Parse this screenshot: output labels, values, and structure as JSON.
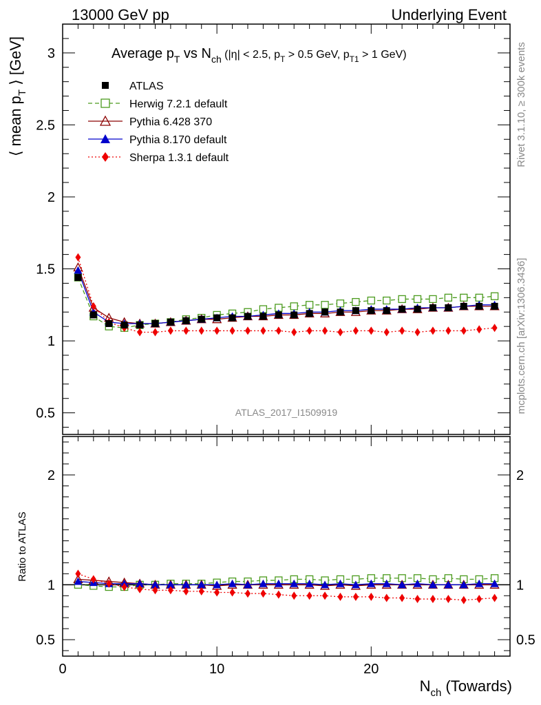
{
  "header": {
    "left": "13000 GeV pp",
    "right": "Underlying Event"
  },
  "side": {
    "rivet": "Rivet 3.1.10, ≥ 300k events",
    "mcplots": "mcplots.cern.ch [arXiv:1306.3436]"
  },
  "watermark": "ATLAS_2017_I1509919",
  "chart_data": {
    "type": "line",
    "title": "Average p_T vs N_ch (|η| < 2.5, p_T > 0.5 GeV, p_T1 > 1 GeV)",
    "title_parts": {
      "a": "Average p",
      "a_sub": "T",
      "b": " vs N",
      "b_sub": "ch",
      "c": " (|η| < 2.5, p",
      "c_sub": "T",
      "d": " > 0.5 GeV, p",
      "d_sub": "T1",
      "e": " > 1 GeV)"
    },
    "ylabel_parts": {
      "a": "⟨ mean p",
      "sub": "T",
      "b": " ⟩ [GeV]"
    },
    "xlabel_parts": {
      "a": "N",
      "sub": "ch",
      "b": " (Towards)"
    },
    "ratio_ylabel": "Ratio to ATLAS",
    "xlim": [
      0,
      29
    ],
    "ylim": [
      0.35,
      3.2
    ],
    "ratio_ylim": [
      0.35,
      2.35
    ],
    "x_ticks": [
      "0",
      "10",
      "20"
    ],
    "y_ticks": [
      "0.5",
      "1",
      "1.5",
      "2",
      "2.5",
      "3"
    ],
    "ratio_y_ticks": [
      "0.5",
      "1",
      "2"
    ],
    "legend_position": "top-left",
    "x": [
      1,
      2,
      3,
      4,
      5,
      6,
      7,
      8,
      9,
      10,
      11,
      12,
      13,
      14,
      15,
      16,
      17,
      18,
      19,
      20,
      21,
      22,
      23,
      24,
      25,
      26,
      27,
      28
    ],
    "series": [
      {
        "name": "ATLAS",
        "color": "#000000",
        "marker": "filled-square",
        "values": [
          1.44,
          1.18,
          1.12,
          1.11,
          1.11,
          1.12,
          1.13,
          1.14,
          1.15,
          1.16,
          1.16,
          1.17,
          1.17,
          1.18,
          1.18,
          1.19,
          1.2,
          1.2,
          1.21,
          1.21,
          1.21,
          1.22,
          1.22,
          1.23,
          1.23,
          1.24,
          1.24,
          1.24
        ],
        "ratio": [
          1,
          1,
          1,
          1,
          1,
          1,
          1,
          1,
          1,
          1,
          1,
          1,
          1,
          1,
          1,
          1,
          1,
          1,
          1,
          1,
          1,
          1,
          1,
          1,
          1,
          1,
          1,
          1
        ]
      },
      {
        "name": "Herwig 7.2.1 default",
        "color": "#4a9a1c",
        "marker": "open-square",
        "dash": "6,4",
        "values": [
          1.44,
          1.17,
          1.1,
          1.09,
          1.11,
          1.12,
          1.13,
          1.15,
          1.16,
          1.18,
          1.19,
          1.2,
          1.22,
          1.23,
          1.24,
          1.25,
          1.25,
          1.26,
          1.27,
          1.28,
          1.28,
          1.29,
          1.29,
          1.29,
          1.3,
          1.3,
          1.3,
          1.31
        ],
        "ratio": [
          1.0,
          0.99,
          0.98,
          0.98,
          1.0,
          1.0,
          1.01,
          1.01,
          1.01,
          1.02,
          1.03,
          1.03,
          1.04,
          1.04,
          1.05,
          1.05,
          1.04,
          1.05,
          1.05,
          1.06,
          1.06,
          1.06,
          1.06,
          1.05,
          1.06,
          1.05,
          1.05,
          1.06
        ]
      },
      {
        "name": "Pythia 6.428 370",
        "color": "#8b0000",
        "marker": "open-triangle",
        "values": [
          1.51,
          1.23,
          1.16,
          1.13,
          1.12,
          1.12,
          1.13,
          1.14,
          1.15,
          1.15,
          1.16,
          1.17,
          1.17,
          1.18,
          1.18,
          1.19,
          1.19,
          1.2,
          1.2,
          1.21,
          1.21,
          1.22,
          1.22,
          1.23,
          1.23,
          1.24,
          1.24,
          1.24
        ],
        "ratio": [
          1.05,
          1.04,
          1.03,
          1.02,
          1.01,
          1.0,
          1.0,
          1.0,
          1.0,
          0.99,
          1.0,
          1.0,
          1.0,
          1.0,
          1.0,
          1.0,
          0.99,
          1.0,
          0.99,
          1.0,
          1.0,
          1.0,
          1.0,
          1.0,
          1.0,
          1.0,
          1.0,
          1.0
        ]
      },
      {
        "name": "Pythia 8.170 default",
        "color": "#0000cc",
        "marker": "filled-triangle",
        "values": [
          1.49,
          1.2,
          1.13,
          1.12,
          1.12,
          1.12,
          1.13,
          1.14,
          1.15,
          1.16,
          1.17,
          1.17,
          1.18,
          1.19,
          1.19,
          1.2,
          1.2,
          1.21,
          1.21,
          1.22,
          1.22,
          1.22,
          1.23,
          1.23,
          1.23,
          1.24,
          1.25,
          1.25
        ],
        "ratio": [
          1.03,
          1.02,
          1.01,
          1.01,
          1.01,
          1.0,
          1.0,
          1.0,
          1.0,
          1.0,
          1.01,
          1.0,
          1.01,
          1.01,
          1.01,
          1.01,
          1.0,
          1.01,
          1.0,
          1.01,
          1.01,
          1.0,
          1.01,
          1.0,
          1.0,
          1.0,
          1.01,
          1.01
        ]
      },
      {
        "name": "Sherpa 1.3.1 default",
        "color": "#ee0000",
        "marker": "filled-diamond",
        "dash": "2,3",
        "values": [
          1.58,
          1.24,
          1.13,
          1.09,
          1.06,
          1.06,
          1.07,
          1.07,
          1.07,
          1.07,
          1.07,
          1.07,
          1.07,
          1.07,
          1.06,
          1.07,
          1.07,
          1.06,
          1.07,
          1.07,
          1.06,
          1.07,
          1.06,
          1.07,
          1.07,
          1.07,
          1.08,
          1.09
        ],
        "ratio": [
          1.1,
          1.05,
          1.01,
          0.98,
          0.96,
          0.95,
          0.95,
          0.94,
          0.94,
          0.93,
          0.93,
          0.92,
          0.92,
          0.91,
          0.9,
          0.9,
          0.9,
          0.89,
          0.89,
          0.89,
          0.88,
          0.88,
          0.87,
          0.87,
          0.87,
          0.86,
          0.87,
          0.88
        ]
      }
    ]
  }
}
